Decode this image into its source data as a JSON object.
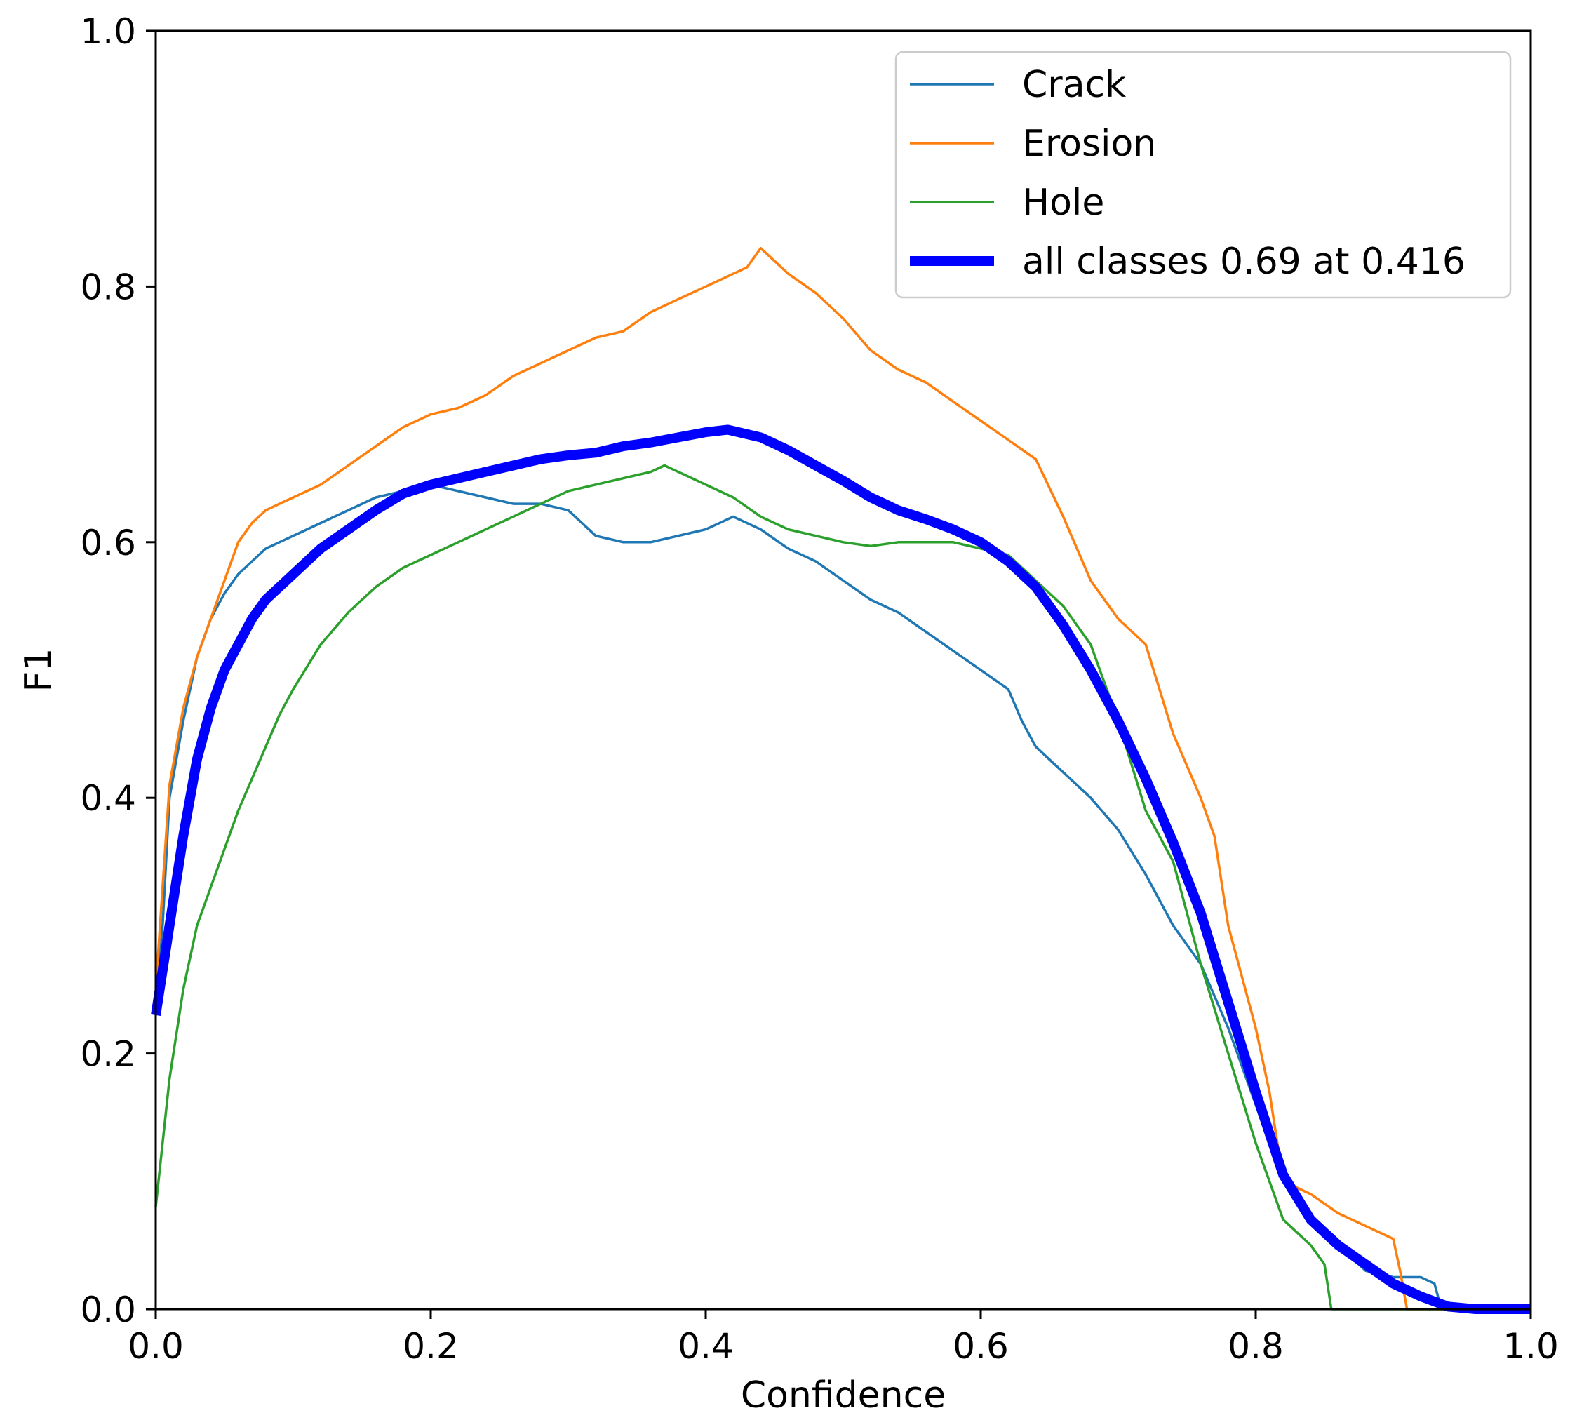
{
  "chart_data": {
    "type": "line",
    "title": "",
    "xlabel": "Confidence",
    "ylabel": "F1",
    "xlim": [
      0.0,
      1.0
    ],
    "ylim": [
      0.0,
      1.0
    ],
    "grid": false,
    "legend_position": "top-right",
    "xticks": [
      0.0,
      0.2,
      0.4,
      0.6,
      0.8,
      1.0
    ],
    "yticks": [
      0.0,
      0.2,
      0.4,
      0.6,
      0.8,
      1.0
    ],
    "xtick_labels": [
      "0.0",
      "0.2",
      "0.4",
      "0.6",
      "0.8",
      "1.0"
    ],
    "ytick_labels": [
      "0.0",
      "0.2",
      "0.4",
      "0.6",
      "0.8",
      "1.0"
    ],
    "series": [
      {
        "name": "Crack",
        "label": "Crack",
        "color": "#1f77b4",
        "x": [
          0.0,
          0.005,
          0.01,
          0.02,
          0.03,
          0.04,
          0.05,
          0.06,
          0.07,
          0.08,
          0.09,
          0.1,
          0.12,
          0.14,
          0.16,
          0.18,
          0.2,
          0.22,
          0.24,
          0.26,
          0.28,
          0.3,
          0.32,
          0.34,
          0.36,
          0.38,
          0.4,
          0.42,
          0.44,
          0.46,
          0.48,
          0.5,
          0.52,
          0.54,
          0.56,
          0.58,
          0.6,
          0.62,
          0.63,
          0.64,
          0.66,
          0.68,
          0.7,
          0.72,
          0.74,
          0.76,
          0.78,
          0.8,
          0.82,
          0.84,
          0.86,
          0.88,
          0.9,
          0.92,
          0.93,
          0.935,
          0.96,
          1.0
        ],
        "y": [
          0.23,
          0.3,
          0.4,
          0.46,
          0.51,
          0.54,
          0.56,
          0.575,
          0.585,
          0.595,
          0.6,
          0.605,
          0.615,
          0.625,
          0.635,
          0.64,
          0.645,
          0.64,
          0.635,
          0.63,
          0.63,
          0.625,
          0.605,
          0.6,
          0.6,
          0.605,
          0.61,
          0.62,
          0.61,
          0.595,
          0.585,
          0.57,
          0.555,
          0.545,
          0.53,
          0.515,
          0.5,
          0.485,
          0.46,
          0.44,
          0.42,
          0.4,
          0.375,
          0.34,
          0.3,
          0.27,
          0.22,
          0.16,
          0.1,
          0.07,
          0.05,
          0.03,
          0.025,
          0.025,
          0.02,
          0.0,
          0.0,
          0.0
        ]
      },
      {
        "name": "Erosion",
        "label": "Erosion",
        "color": "#ff7f0e",
        "x": [
          0.0,
          0.005,
          0.01,
          0.02,
          0.03,
          0.04,
          0.05,
          0.06,
          0.07,
          0.08,
          0.09,
          0.1,
          0.12,
          0.14,
          0.16,
          0.18,
          0.2,
          0.22,
          0.24,
          0.26,
          0.28,
          0.3,
          0.32,
          0.34,
          0.36,
          0.38,
          0.4,
          0.42,
          0.43,
          0.44,
          0.46,
          0.48,
          0.5,
          0.52,
          0.54,
          0.56,
          0.58,
          0.6,
          0.62,
          0.64,
          0.66,
          0.68,
          0.7,
          0.72,
          0.74,
          0.76,
          0.77,
          0.78,
          0.8,
          0.81,
          0.82,
          0.84,
          0.86,
          0.88,
          0.9,
          0.905,
          0.91,
          1.0
        ],
        "y": [
          0.25,
          0.33,
          0.41,
          0.47,
          0.51,
          0.54,
          0.57,
          0.6,
          0.615,
          0.625,
          0.63,
          0.635,
          0.645,
          0.66,
          0.675,
          0.69,
          0.7,
          0.705,
          0.715,
          0.73,
          0.74,
          0.75,
          0.76,
          0.765,
          0.78,
          0.79,
          0.8,
          0.81,
          0.815,
          0.83,
          0.81,
          0.795,
          0.775,
          0.75,
          0.735,
          0.725,
          0.71,
          0.695,
          0.68,
          0.665,
          0.62,
          0.57,
          0.54,
          0.52,
          0.45,
          0.4,
          0.37,
          0.3,
          0.22,
          0.17,
          0.1,
          0.09,
          0.075,
          0.065,
          0.055,
          0.03,
          0.0,
          0.0
        ]
      },
      {
        "name": "Hole",
        "label": "Hole",
        "color": "#2ca02c",
        "x": [
          0.0,
          0.005,
          0.01,
          0.02,
          0.03,
          0.04,
          0.05,
          0.06,
          0.07,
          0.08,
          0.09,
          0.1,
          0.12,
          0.14,
          0.16,
          0.18,
          0.2,
          0.22,
          0.24,
          0.26,
          0.28,
          0.3,
          0.32,
          0.34,
          0.36,
          0.37,
          0.38,
          0.4,
          0.42,
          0.44,
          0.46,
          0.48,
          0.5,
          0.52,
          0.54,
          0.56,
          0.58,
          0.6,
          0.62,
          0.64,
          0.66,
          0.68,
          0.7,
          0.72,
          0.74,
          0.76,
          0.78,
          0.8,
          0.82,
          0.84,
          0.85,
          0.855,
          0.9,
          1.0
        ],
        "y": [
          0.08,
          0.13,
          0.18,
          0.25,
          0.3,
          0.33,
          0.36,
          0.39,
          0.415,
          0.44,
          0.465,
          0.485,
          0.52,
          0.545,
          0.565,
          0.58,
          0.59,
          0.6,
          0.61,
          0.62,
          0.63,
          0.64,
          0.645,
          0.65,
          0.655,
          0.66,
          0.655,
          0.645,
          0.635,
          0.62,
          0.61,
          0.605,
          0.6,
          0.597,
          0.6,
          0.6,
          0.6,
          0.595,
          0.59,
          0.57,
          0.55,
          0.52,
          0.46,
          0.39,
          0.35,
          0.27,
          0.2,
          0.13,
          0.07,
          0.05,
          0.035,
          0.0,
          0.0,
          0.0
        ]
      },
      {
        "name": "all classes 0.69 at 0.416",
        "label": "all classes 0.69 at 0.416",
        "color": "#0000ff",
        "x": [
          0.0,
          0.01,
          0.02,
          0.03,
          0.04,
          0.05,
          0.06,
          0.07,
          0.08,
          0.1,
          0.12,
          0.14,
          0.16,
          0.18,
          0.2,
          0.22,
          0.24,
          0.26,
          0.28,
          0.3,
          0.32,
          0.34,
          0.36,
          0.38,
          0.4,
          0.416,
          0.44,
          0.46,
          0.48,
          0.5,
          0.52,
          0.54,
          0.56,
          0.58,
          0.6,
          0.62,
          0.64,
          0.66,
          0.68,
          0.7,
          0.72,
          0.74,
          0.76,
          0.78,
          0.8,
          0.82,
          0.84,
          0.86,
          0.88,
          0.9,
          0.92,
          0.94,
          0.96,
          1.0
        ],
        "y": [
          0.23,
          0.3,
          0.37,
          0.43,
          0.47,
          0.5,
          0.52,
          0.54,
          0.555,
          0.575,
          0.595,
          0.61,
          0.625,
          0.638,
          0.645,
          0.65,
          0.655,
          0.66,
          0.665,
          0.668,
          0.67,
          0.675,
          0.678,
          0.682,
          0.686,
          0.688,
          0.682,
          0.672,
          0.66,
          0.648,
          0.635,
          0.625,
          0.618,
          0.61,
          0.6,
          0.585,
          0.565,
          0.535,
          0.5,
          0.46,
          0.415,
          0.365,
          0.31,
          0.24,
          0.17,
          0.105,
          0.07,
          0.05,
          0.035,
          0.02,
          0.01,
          0.002,
          0.0,
          0.0
        ]
      }
    ]
  }
}
